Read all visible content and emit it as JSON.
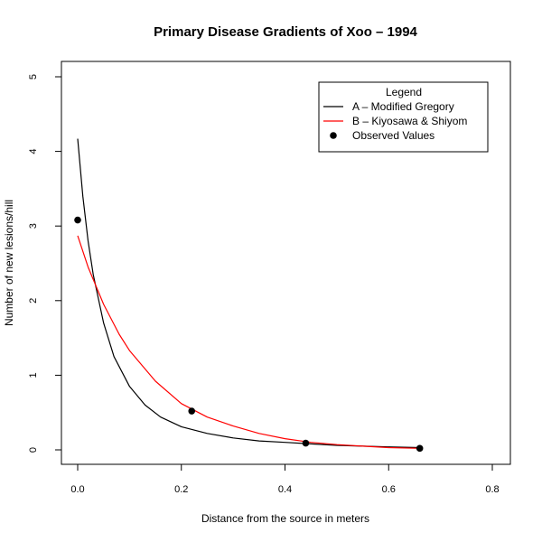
{
  "chart_data": {
    "type": "line",
    "title": "Primary Disease Gradients of Xoo – 1994",
    "xlabel": "Distance from the source in meters",
    "ylabel": "Number of new lesions/hill",
    "xlim": [
      0,
      0.8
    ],
    "ylim": [
      0,
      5
    ],
    "x_ticks": [
      0.0,
      0.2,
      0.4,
      0.6,
      0.8
    ],
    "x_tick_labels": [
      "0.0",
      "0.2",
      "0.4",
      "0.6",
      "0.8"
    ],
    "y_ticks": [
      0,
      1,
      2,
      3,
      4,
      5
    ],
    "y_tick_labels": [
      "0",
      "1",
      "2",
      "3",
      "4",
      "5"
    ],
    "grid": false,
    "legend": {
      "title": "Legend",
      "placement": "top-right",
      "entries": [
        {
          "label": "A – Modified Gregory",
          "kind": "line",
          "color": "#000000"
        },
        {
          "label": "B – Kiyosawa & Shiyom",
          "kind": "line",
          "color": "#ff0000"
        },
        {
          "label": "Observed Values",
          "kind": "point",
          "color": "#000000"
        }
      ]
    },
    "series": [
      {
        "name": "A – Modified Gregory",
        "kind": "line",
        "color": "#000000",
        "x": [
          0.0,
          0.01,
          0.02,
          0.03,
          0.05,
          0.07,
          0.1,
          0.13,
          0.16,
          0.2,
          0.25,
          0.3,
          0.35,
          0.4,
          0.45,
          0.5,
          0.55,
          0.6,
          0.66
        ],
        "y": [
          4.17,
          3.4,
          2.8,
          2.35,
          1.7,
          1.25,
          0.85,
          0.6,
          0.44,
          0.31,
          0.22,
          0.16,
          0.12,
          0.1,
          0.08,
          0.06,
          0.05,
          0.04,
          0.03
        ]
      },
      {
        "name": "B – Kiyosawa & Shiyom",
        "kind": "line",
        "color": "#ff0000",
        "x": [
          0.0,
          0.02,
          0.05,
          0.08,
          0.1,
          0.15,
          0.2,
          0.25,
          0.3,
          0.35,
          0.4,
          0.45,
          0.5,
          0.55,
          0.6,
          0.66
        ],
        "y": [
          2.87,
          2.45,
          1.95,
          1.55,
          1.33,
          0.92,
          0.62,
          0.44,
          0.32,
          0.22,
          0.15,
          0.1,
          0.07,
          0.05,
          0.03,
          0.02
        ]
      },
      {
        "name": "Observed Values",
        "kind": "scatter",
        "color": "#000000",
        "x": [
          0.0,
          0.22,
          0.44,
          0.66
        ],
        "y": [
          3.08,
          0.52,
          0.09,
          0.02
        ]
      }
    ]
  }
}
